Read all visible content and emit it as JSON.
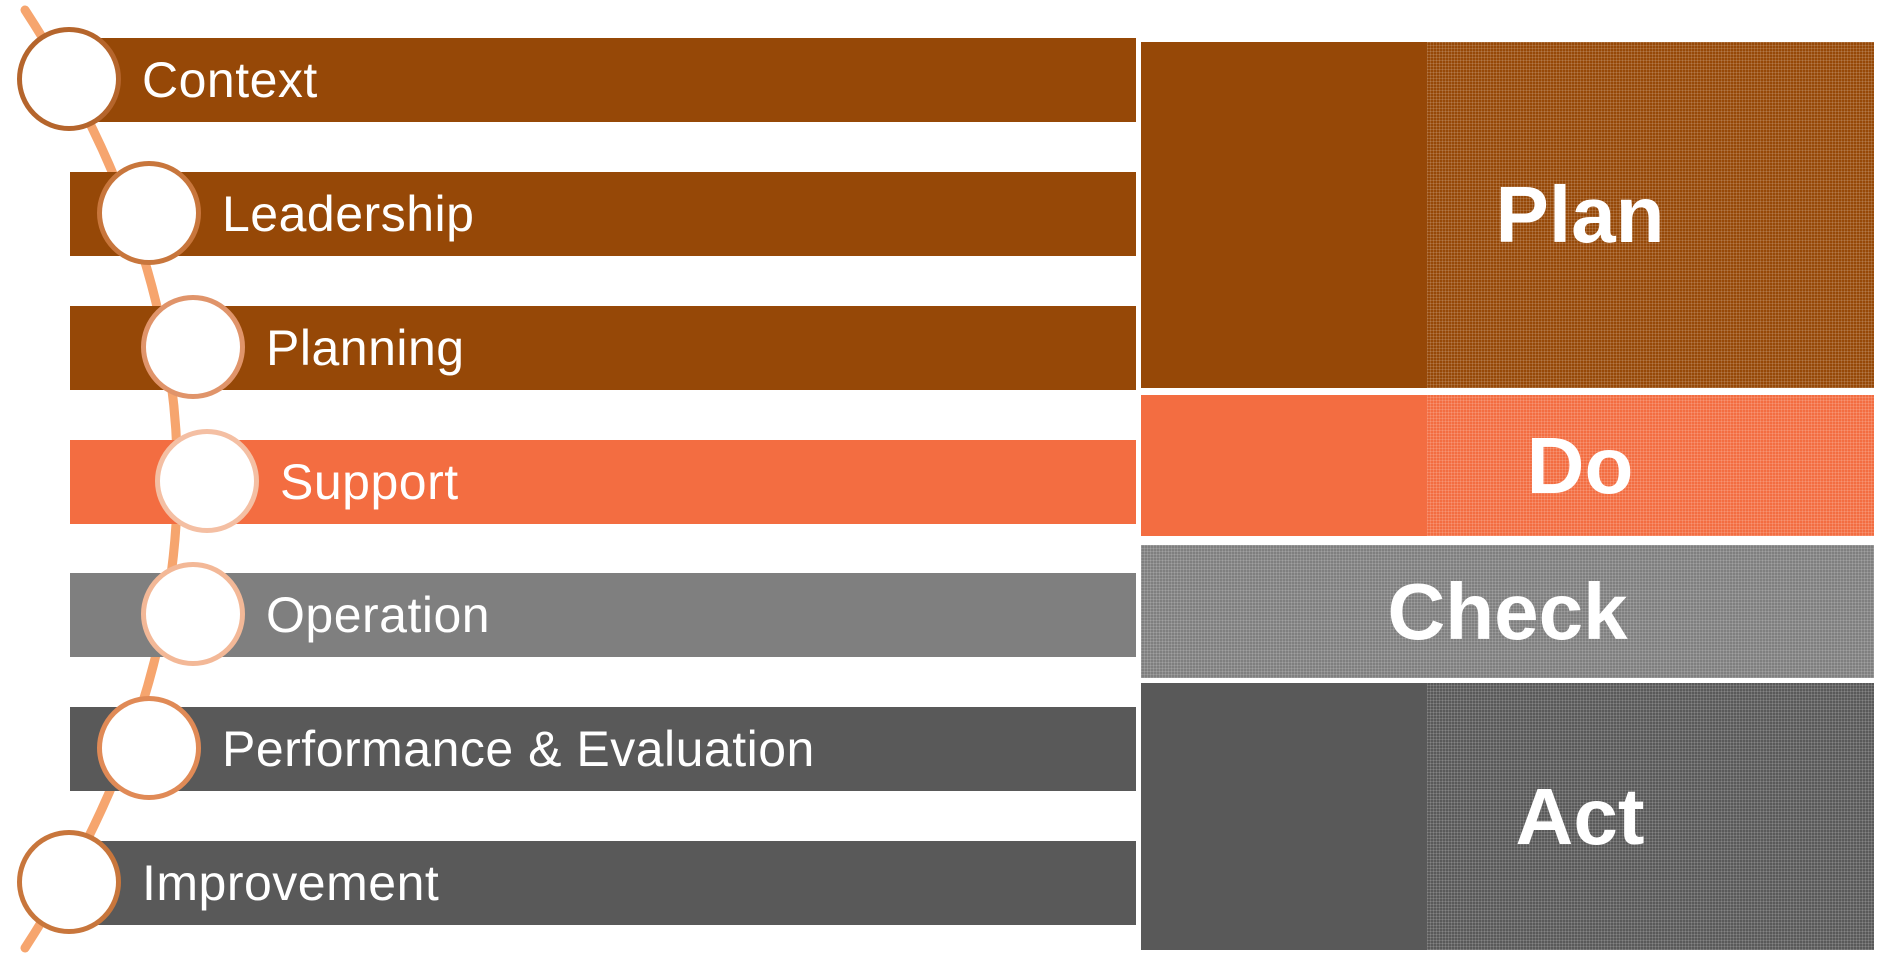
{
  "steps": [
    {
      "label": "Context",
      "color": "#964807"
    },
    {
      "label": "Leadership",
      "color": "#964807"
    },
    {
      "label": "Planning",
      "color": "#964807"
    },
    {
      "label": "Support",
      "color": "#f36d41"
    },
    {
      "label": "Operation",
      "color": "#7f7f7f"
    },
    {
      "label": "Performance & Evaluation",
      "color": "#595959"
    },
    {
      "label": "Improvement",
      "color": "#595959"
    }
  ],
  "phases": [
    {
      "label": "Plan",
      "color": "#964807"
    },
    {
      "label": "Do",
      "color": "#f36d41"
    },
    {
      "label": "Check",
      "color": "#7f7f7f"
    },
    {
      "label": "Act",
      "color": "#595959"
    }
  ],
  "arc_color": "#f6a56e"
}
